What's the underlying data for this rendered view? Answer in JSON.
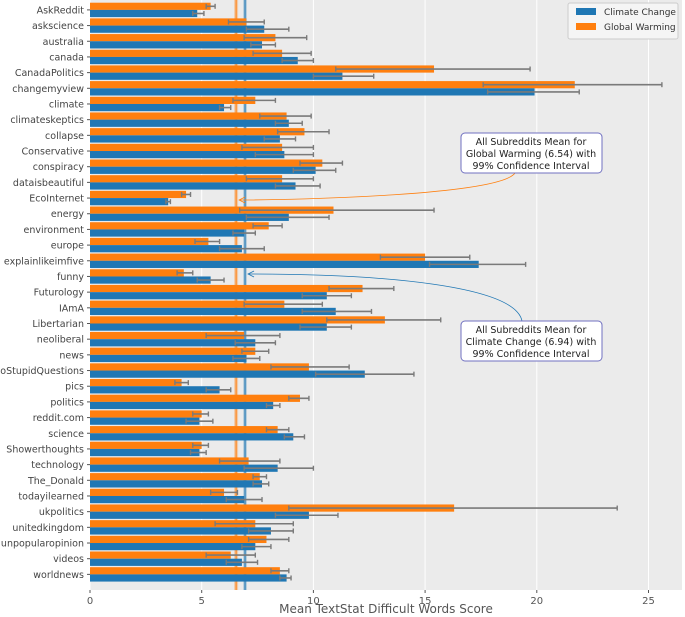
{
  "chart_data": {
    "type": "bar",
    "orientation": "horizontal",
    "xlabel": "Mean TextStat Difficult Words Score",
    "ylabel": "",
    "xlim": [
      0,
      26.5
    ],
    "xticks": [
      0,
      5,
      10,
      15,
      20,
      25
    ],
    "grid": true,
    "legend_position": "top-right",
    "categories": [
      "AskReddit",
      "askscience",
      "australia",
      "canada",
      "CanadaPolitics",
      "changemyview",
      "climate",
      "climateskeptics",
      "collapse",
      "Conservative",
      "conspiracy",
      "dataisbeautiful",
      "EcoInternet",
      "energy",
      "environment",
      "europe",
      "explainlikeimfive",
      "funny",
      "Futurology",
      "IAmA",
      "Libertarian",
      "neoliberal",
      "news",
      "NoStupidQuestions",
      "pics",
      "politics",
      "reddit.com",
      "science",
      "Showerthoughts",
      "technology",
      "The_Donald",
      "todayilearned",
      "ukpolitics",
      "unitedkingdom",
      "unpopularopinion",
      "videos",
      "worldnews"
    ],
    "series": [
      {
        "name": "Global Warming",
        "color": "#ff7f0e",
        "values": [
          5.4,
          7.0,
          8.3,
          8.6,
          15.4,
          21.7,
          7.4,
          8.8,
          9.6,
          8.6,
          10.4,
          8.6,
          4.3,
          10.9,
          8.0,
          5.3,
          15.0,
          4.2,
          12.2,
          8.7,
          13.2,
          6.9,
          7.4,
          9.8,
          4.1,
          9.4,
          5.0,
          8.4,
          5.0,
          7.1,
          7.6,
          6.0,
          16.3,
          7.4,
          7.9,
          6.3,
          8.5
        ],
        "ci": [
          [
            5.2,
            5.6
          ],
          [
            6.2,
            7.8
          ],
          [
            6.9,
            9.7
          ],
          [
            7.3,
            9.9
          ],
          [
            11.0,
            19.7
          ],
          [
            17.6,
            25.6
          ],
          [
            6.4,
            8.3
          ],
          [
            7.6,
            9.9
          ],
          [
            8.4,
            10.7
          ],
          [
            6.8,
            10.0
          ],
          [
            9.4,
            11.3
          ],
          [
            7.0,
            10.0
          ],
          [
            4.1,
            4.5
          ],
          [
            6.7,
            15.4
          ],
          [
            7.3,
            8.6
          ],
          [
            4.7,
            5.8
          ],
          [
            13.0,
            17.0
          ],
          [
            3.9,
            4.6
          ],
          [
            10.7,
            13.6
          ],
          [
            6.9,
            10.4
          ],
          [
            10.6,
            15.7
          ],
          [
            5.2,
            8.5
          ],
          [
            6.8,
            8.0
          ],
          [
            8.1,
            11.6
          ],
          [
            3.8,
            4.4
          ],
          [
            8.9,
            9.8
          ],
          [
            4.6,
            5.3
          ],
          [
            7.9,
            8.9
          ],
          [
            4.6,
            5.3
          ],
          [
            5.8,
            8.5
          ],
          [
            7.3,
            7.9
          ],
          [
            5.4,
            6.6
          ],
          [
            8.9,
            23.6
          ],
          [
            5.6,
            9.1
          ],
          [
            7.1,
            8.9
          ],
          [
            5.2,
            7.4
          ],
          [
            8.1,
            8.9
          ]
        ]
      },
      {
        "name": "Climate Change",
        "color": "#1f77b4",
        "values": [
          4.8,
          7.8,
          7.7,
          9.3,
          11.3,
          19.9,
          6.0,
          8.9,
          8.5,
          8.7,
          10.1,
          9.2,
          3.5,
          8.9,
          6.9,
          6.8,
          17.4,
          5.4,
          10.6,
          11.0,
          10.6,
          7.4,
          7.0,
          12.3,
          5.8,
          8.2,
          4.9,
          9.1,
          4.9,
          8.4,
          7.7,
          6.9,
          9.8,
          8.1,
          7.4,
          6.8,
          8.8
        ],
        "ci": [
          [
            4.6,
            5.1
          ],
          [
            7.0,
            8.9
          ],
          [
            7.2,
            8.3
          ],
          [
            8.6,
            10.0
          ],
          [
            10.0,
            12.7
          ],
          [
            17.8,
            21.9
          ],
          [
            5.8,
            6.3
          ],
          [
            8.3,
            9.5
          ],
          [
            7.8,
            9.2
          ],
          [
            7.4,
            10.0
          ],
          [
            9.1,
            11.0
          ],
          [
            8.3,
            10.3
          ],
          [
            3.4,
            3.6
          ],
          [
            7.0,
            10.7
          ],
          [
            6.4,
            7.4
          ],
          [
            5.8,
            7.8
          ],
          [
            15.2,
            19.5
          ],
          [
            4.8,
            6.0
          ],
          [
            9.5,
            11.7
          ],
          [
            9.5,
            12.6
          ],
          [
            9.4,
            11.7
          ],
          [
            6.5,
            8.3
          ],
          [
            6.4,
            7.6
          ],
          [
            10.1,
            14.5
          ],
          [
            5.2,
            6.3
          ],
          [
            7.9,
            8.5
          ],
          [
            4.3,
            5.5
          ],
          [
            8.7,
            9.6
          ],
          [
            4.5,
            5.2
          ],
          [
            6.9,
            10.0
          ],
          [
            7.3,
            8.0
          ],
          [
            6.1,
            7.7
          ],
          [
            8.3,
            11.1
          ],
          [
            7.1,
            9.1
          ],
          [
            6.8,
            8.1
          ],
          [
            6.1,
            7.5
          ],
          [
            8.5,
            9.0
          ]
        ]
      }
    ],
    "reference_lines": [
      {
        "name": "All Subreddits Mean for Global Warming",
        "value": 6.54,
        "ci": [
          6.45,
          6.63
        ],
        "color": "#ff7f0e"
      },
      {
        "name": "All Subreddits Mean for Climate Change",
        "value": 6.94,
        "ci": [
          6.86,
          7.02
        ],
        "color": "#1f77b4"
      }
    ],
    "annotations": [
      {
        "lines": [
          "All Subreddits Mean for",
          "Global Warming (6.54) with",
          "99% Confidence Interval"
        ],
        "target": "Global Warming mean line"
      },
      {
        "lines": [
          "All Subreddits Mean for",
          "Climate Change (6.94) with",
          "99% Confidence Interval"
        ],
        "target": "Climate Change mean line"
      }
    ]
  }
}
